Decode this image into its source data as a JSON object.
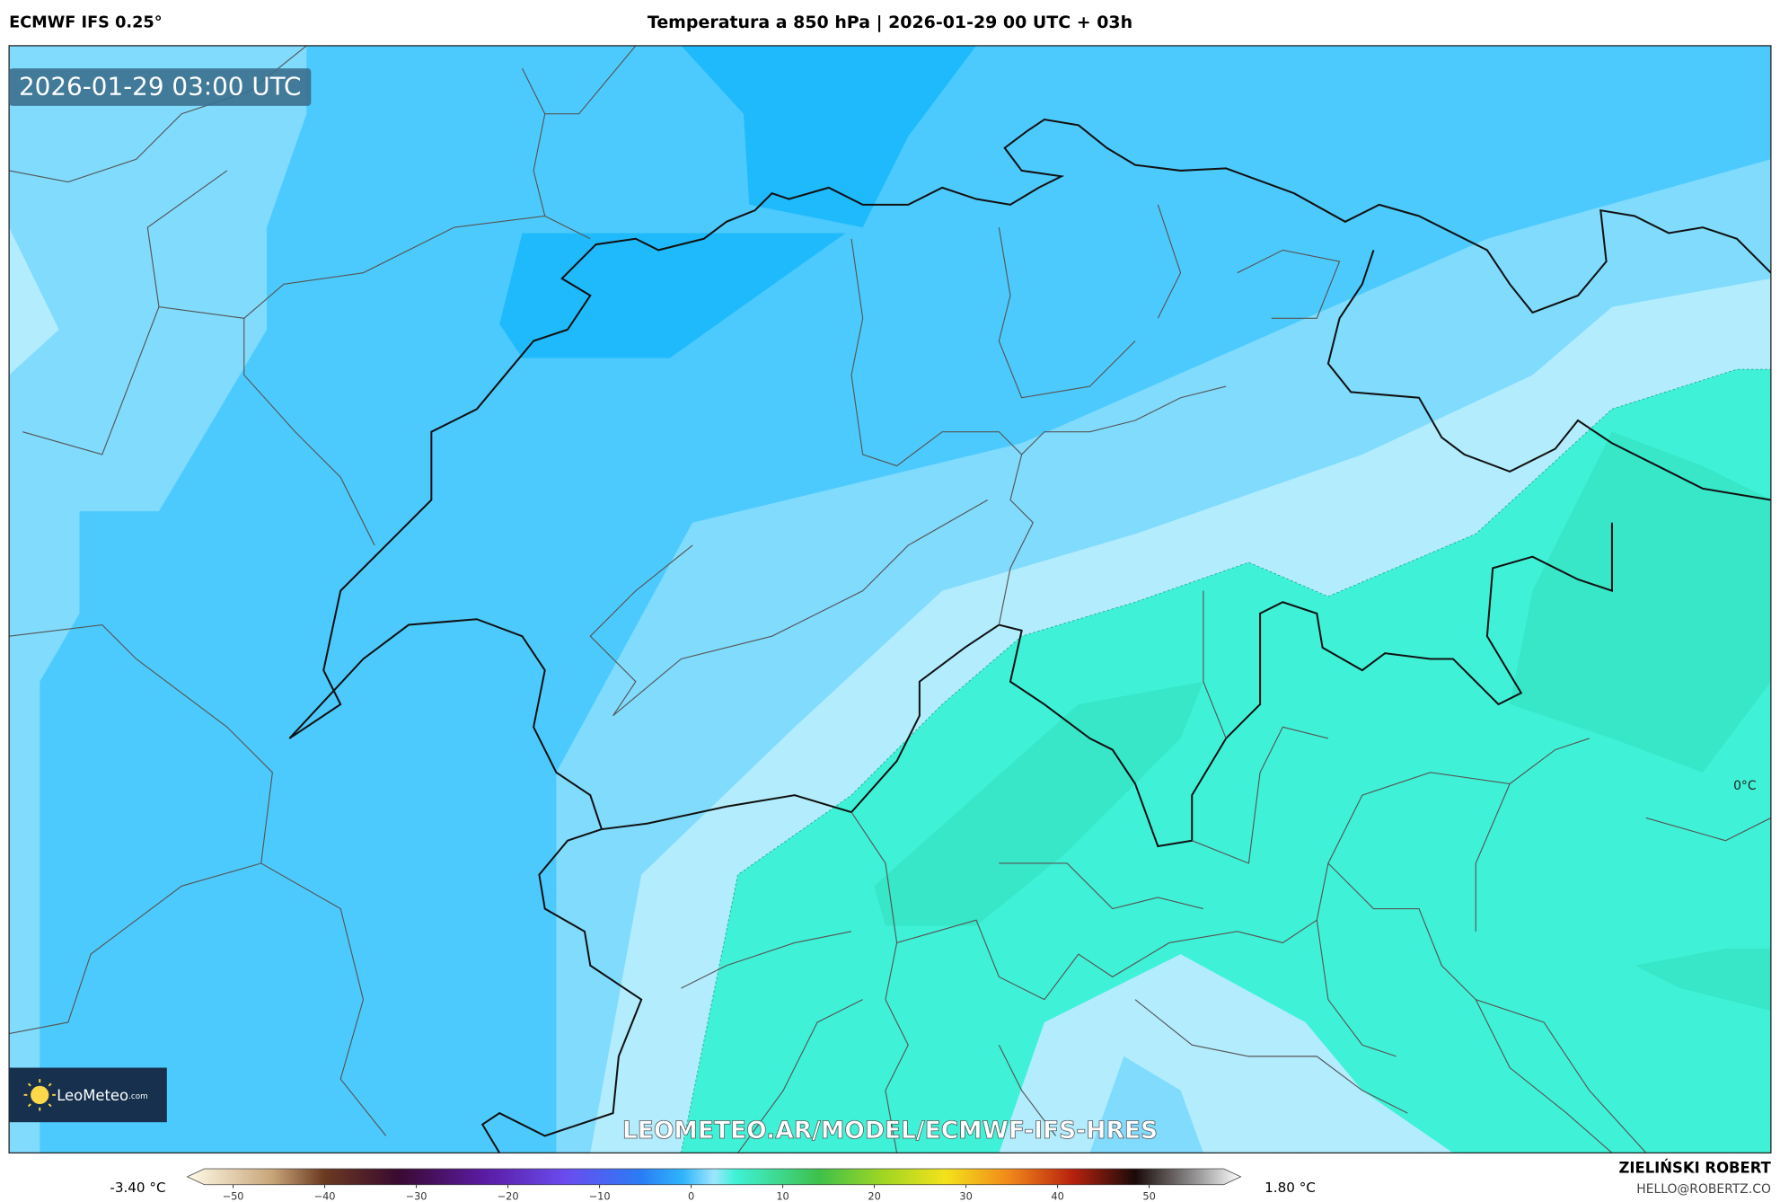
{
  "header": {
    "model": "ECMWF IFS 0.25°",
    "title": "Temperatura a 850 hPa | 2026-01-29 00 UTC + 03h"
  },
  "map": {
    "timestamp": "2026-01-29 03:00 UTC",
    "contour_label": "0°C",
    "watermark": "LEOMETEO.AR/MODEL/ECMWF-IFS-HRES",
    "logo": {
      "name": "LeoMeteo",
      "suffix": ".com"
    }
  },
  "colorbar": {
    "min_label": "-3.40 °C",
    "max_label": "1.80 °C",
    "range": [
      -55,
      60
    ],
    "ticks": [
      {
        "value": -50,
        "label": "−50"
      },
      {
        "value": -40,
        "label": "−40"
      },
      {
        "value": -30,
        "label": "−30"
      },
      {
        "value": -20,
        "label": "−20"
      },
      {
        "value": -10,
        "label": "−10"
      },
      0,
      10,
      20,
      30,
      40,
      50
    ]
  },
  "footer": {
    "author": "ZIELIŃSKI ROBERT",
    "email": "HELLO@ROBERTZ.CO"
  }
}
